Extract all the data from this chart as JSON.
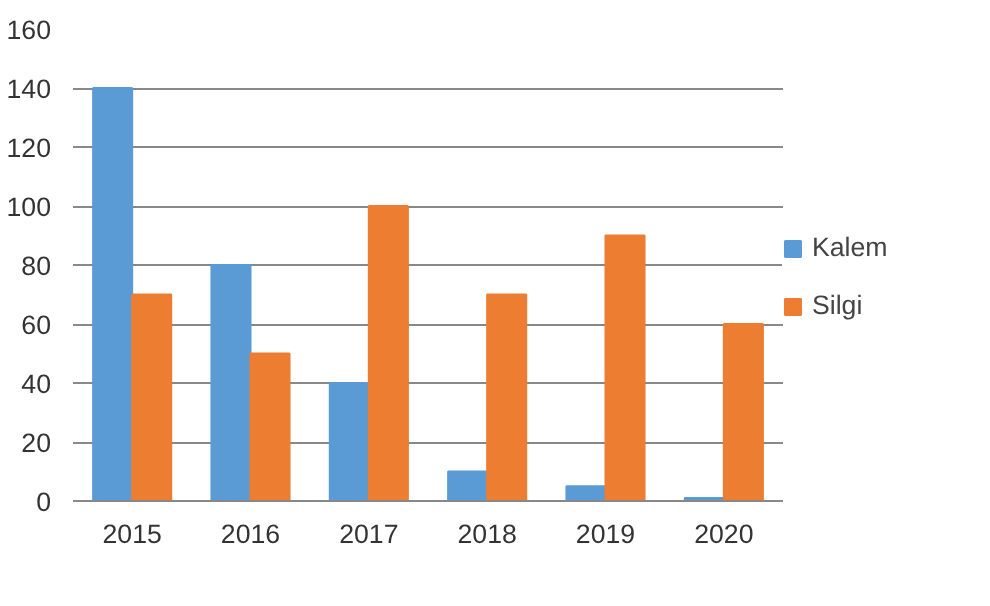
{
  "chart_data": {
    "type": "bar",
    "categories": [
      "2015",
      "2016",
      "2017",
      "2018",
      "2019",
      "2020"
    ],
    "series": [
      {
        "name": "Kalem",
        "color": "#5b9bd5",
        "values": [
          140,
          80,
          40,
          10,
          5,
          1
        ]
      },
      {
        "name": "Silgi",
        "color": "#ed7d31",
        "values": [
          70,
          50,
          100,
          70,
          90,
          60
        ]
      }
    ],
    "ylim": [
      0,
      160
    ],
    "yticks": [
      0,
      20,
      40,
      60,
      80,
      100,
      120,
      140,
      160
    ],
    "grid": "y",
    "legend": "right"
  }
}
